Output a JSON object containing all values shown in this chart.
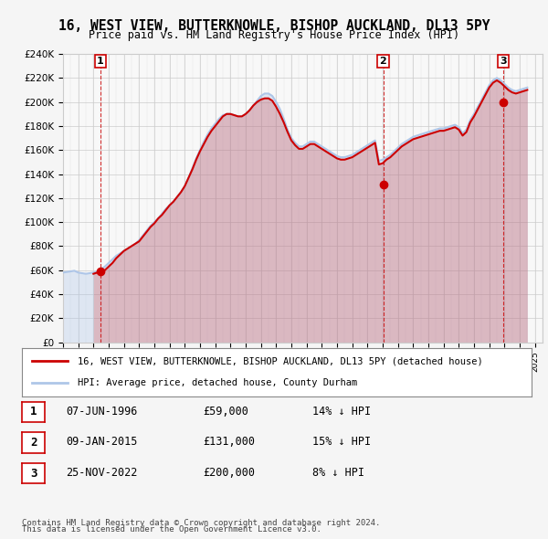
{
  "title": "16, WEST VIEW, BUTTERKNOWLE, BISHOP AUCKLAND, DL13 5PY",
  "subtitle": "Price paid vs. HM Land Registry's House Price Index (HPI)",
  "ylabel_ticks": [
    "£0",
    "£20K",
    "£40K",
    "£60K",
    "£80K",
    "£100K",
    "£120K",
    "£140K",
    "£160K",
    "£180K",
    "£200K",
    "£220K",
    "£240K"
  ],
  "ylim": [
    0,
    240000
  ],
  "xlim_start": 1994.0,
  "xlim_end": 2025.5,
  "hpi_color": "#aec6e8",
  "price_color": "#cc0000",
  "sale_points": [
    {
      "date": 1996.44,
      "price": 59000,
      "label": "1"
    },
    {
      "date": 2015.03,
      "price": 131000,
      "label": "2"
    },
    {
      "date": 2022.9,
      "price": 200000,
      "label": "3"
    }
  ],
  "legend_entries": [
    "16, WEST VIEW, BUTTERKNOWLE, BISHOP AUCKLAND, DL13 5PY (detached house)",
    "HPI: Average price, detached house, County Durham"
  ],
  "table_rows": [
    {
      "num": "1",
      "date": "07-JUN-1996",
      "price": "£59,000",
      "hpi": "14% ↓ HPI"
    },
    {
      "num": "2",
      "date": "09-JAN-2015",
      "price": "£131,000",
      "hpi": "15% ↓ HPI"
    },
    {
      "num": "3",
      "date": "25-NOV-2022",
      "price": "£200,000",
      "hpi": "8% ↓ HPI"
    }
  ],
  "footnote1": "Contains HM Land Registry data © Crown copyright and database right 2024.",
  "footnote2": "This data is licensed under the Open Government Licence v3.0.",
  "background_color": "#f5f5f5",
  "plot_bg_color": "#ffffff",
  "hpi_data": {
    "years": [
      1994.0,
      1994.25,
      1994.5,
      1994.75,
      1995.0,
      1995.25,
      1995.5,
      1995.75,
      1996.0,
      1996.25,
      1996.5,
      1996.75,
      1997.0,
      1997.25,
      1997.5,
      1997.75,
      1998.0,
      1998.25,
      1998.5,
      1998.75,
      1999.0,
      1999.25,
      1999.5,
      1999.75,
      2000.0,
      2000.25,
      2000.5,
      2000.75,
      2001.0,
      2001.25,
      2001.5,
      2001.75,
      2002.0,
      2002.25,
      2002.5,
      2002.75,
      2003.0,
      2003.25,
      2003.5,
      2003.75,
      2004.0,
      2004.25,
      2004.5,
      2004.75,
      2005.0,
      2005.25,
      2005.5,
      2005.75,
      2006.0,
      2006.25,
      2006.5,
      2006.75,
      2007.0,
      2007.25,
      2007.5,
      2007.75,
      2008.0,
      2008.25,
      2008.5,
      2008.75,
      2009.0,
      2009.25,
      2009.5,
      2009.75,
      2010.0,
      2010.25,
      2010.5,
      2010.75,
      2011.0,
      2011.25,
      2011.5,
      2011.75,
      2012.0,
      2012.25,
      2012.5,
      2012.75,
      2013.0,
      2013.25,
      2013.5,
      2013.75,
      2014.0,
      2014.25,
      2014.5,
      2014.75,
      2015.0,
      2015.25,
      2015.5,
      2015.75,
      2016.0,
      2016.25,
      2016.5,
      2016.75,
      2017.0,
      2017.25,
      2017.5,
      2017.75,
      2018.0,
      2018.25,
      2018.5,
      2018.75,
      2019.0,
      2019.25,
      2019.5,
      2019.75,
      2020.0,
      2020.25,
      2020.5,
      2020.75,
      2021.0,
      2021.25,
      2021.5,
      2021.75,
      2022.0,
      2022.25,
      2022.5,
      2022.75,
      2023.0,
      2023.25,
      2023.5,
      2023.75,
      2024.0,
      2024.25,
      2024.5
    ],
    "values": [
      58000,
      58500,
      59000,
      59500,
      58000,
      57500,
      57000,
      57500,
      58000,
      59000,
      61000,
      63000,
      66000,
      69000,
      72000,
      74000,
      76000,
      78000,
      80000,
      82000,
      85000,
      89000,
      93000,
      97000,
      100000,
      103000,
      107000,
      111000,
      114000,
      117000,
      121000,
      125000,
      130000,
      137000,
      145000,
      153000,
      160000,
      167000,
      173000,
      178000,
      182000,
      186000,
      189000,
      190000,
      190000,
      189000,
      188000,
      188000,
      190000,
      193000,
      197000,
      201000,
      205000,
      207000,
      207000,
      205000,
      200000,
      194000,
      186000,
      177000,
      170000,
      166000,
      163000,
      163000,
      165000,
      167000,
      167000,
      165000,
      163000,
      161000,
      159000,
      157000,
      155000,
      154000,
      154000,
      155000,
      156000,
      158000,
      160000,
      162000,
      164000,
      166000,
      168000,
      151000,
      152000,
      154000,
      156000,
      159000,
      162000,
      165000,
      167000,
      169000,
      171000,
      172000,
      173000,
      174000,
      175000,
      176000,
      177000,
      178000,
      178000,
      179000,
      180000,
      181000,
      179000,
      174000,
      177000,
      185000,
      190000,
      196000,
      202000,
      208000,
      214000,
      218000,
      220000,
      218000,
      215000,
      212000,
      210000,
      209000,
      210000,
      211000,
      212000
    ]
  },
  "price_data": {
    "years": [
      1996.0,
      1996.25,
      1996.5,
      1996.75,
      1997.0,
      1997.25,
      1997.5,
      1997.75,
      1998.0,
      1998.25,
      1998.5,
      1998.75,
      1999.0,
      1999.25,
      1999.5,
      1999.75,
      2000.0,
      2000.25,
      2000.5,
      2000.75,
      2001.0,
      2001.25,
      2001.5,
      2001.75,
      2002.0,
      2002.25,
      2002.5,
      2002.75,
      2003.0,
      2003.25,
      2003.5,
      2003.75,
      2004.0,
      2004.25,
      2004.5,
      2004.75,
      2005.0,
      2005.25,
      2005.5,
      2005.75,
      2006.0,
      2006.25,
      2006.5,
      2006.75,
      2007.0,
      2007.25,
      2007.5,
      2007.75,
      2008.0,
      2008.25,
      2008.5,
      2008.75,
      2009.0,
      2009.25,
      2009.5,
      2009.75,
      2010.0,
      2010.25,
      2010.5,
      2010.75,
      2011.0,
      2011.25,
      2011.5,
      2011.75,
      2012.0,
      2012.25,
      2012.5,
      2012.75,
      2013.0,
      2013.25,
      2013.5,
      2013.75,
      2014.0,
      2014.25,
      2014.5,
      2014.75,
      2015.0,
      2015.25,
      2015.5,
      2015.75,
      2016.0,
      2016.25,
      2016.5,
      2016.75,
      2017.0,
      2017.25,
      2017.5,
      2017.75,
      2018.0,
      2018.25,
      2018.5,
      2018.75,
      2019.0,
      2019.25,
      2019.5,
      2019.75,
      2020.0,
      2020.25,
      2020.5,
      2020.75,
      2021.0,
      2021.25,
      2021.5,
      2021.75,
      2022.0,
      2022.25,
      2022.5,
      2022.75,
      2023.0,
      2023.25,
      2023.5,
      2023.75,
      2024.0,
      2024.25,
      2024.5
    ],
    "values": [
      57000,
      58000,
      59000,
      60000,
      63000,
      66000,
      70000,
      73000,
      76000,
      78000,
      80000,
      82000,
      84000,
      88000,
      92000,
      96000,
      99000,
      103000,
      106000,
      110000,
      114000,
      117000,
      121000,
      125000,
      130000,
      137000,
      144000,
      152000,
      159000,
      165000,
      171000,
      176000,
      180000,
      184000,
      188000,
      190000,
      190000,
      189000,
      188000,
      188000,
      190000,
      193000,
      197000,
      200000,
      202000,
      203000,
      203000,
      201000,
      196000,
      190000,
      183000,
      175000,
      168000,
      164000,
      161000,
      161000,
      163000,
      165000,
      165000,
      163000,
      161000,
      159000,
      157000,
      155000,
      153000,
      152000,
      152000,
      153000,
      154000,
      156000,
      158000,
      160000,
      162000,
      164000,
      166000,
      148000,
      149000,
      152000,
      154000,
      157000,
      160000,
      163000,
      165000,
      167000,
      169000,
      170000,
      171000,
      172000,
      173000,
      174000,
      175000,
      176000,
      176000,
      177000,
      178000,
      179000,
      177000,
      172000,
      175000,
      183000,
      188000,
      194000,
      200000,
      206000,
      212000,
      216000,
      218000,
      216000,
      213000,
      210000,
      208000,
      207000,
      208000,
      209000,
      210000
    ]
  }
}
